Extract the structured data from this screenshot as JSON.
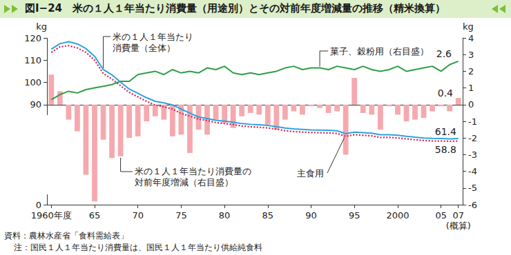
{
  "chart_data": {
    "type": "combo",
    "title": "図Ⅰ−24　米の１人１年当たり消費量（用途別）とその対前年度増減量の推移（精米換算）",
    "categories": [
      "1960年度",
      null,
      null,
      null,
      null,
      "65",
      null,
      null,
      null,
      null,
      "70",
      null,
      null,
      null,
      null,
      "75",
      null,
      null,
      null,
      null,
      "80",
      null,
      null,
      null,
      null,
      "85",
      null,
      null,
      null,
      null,
      "90",
      null,
      null,
      null,
      null,
      "95",
      null,
      null,
      null,
      null,
      "2000",
      null,
      null,
      null,
      null,
      "05",
      null,
      "07\n(概算)"
    ],
    "series": [
      {
        "name": "米の１人１年当たり消費量の対前年度増減（右目盛）",
        "type": "bar",
        "axis": "y2",
        "color": "#f5a9ae",
        "values": [
          1.8,
          0.8,
          -0.9,
          -1.6,
          -4.2,
          -5.8,
          -2.1,
          -3.2,
          -3.1,
          -2.0,
          -1.9,
          -1.0,
          -0.7,
          -0.9,
          -1.9,
          -1.8,
          -2.9,
          -1.5,
          -1.8,
          -0.9,
          -1.1,
          -1.4,
          -0.7,
          -0.5,
          -0.6,
          -1.2,
          -1.5,
          -0.9,
          -0.4,
          -0.6,
          -0.1,
          -0.2,
          -0.5,
          -0.4,
          -3.0,
          1.6,
          -0.5,
          -0.6,
          -1.5,
          -0.1,
          -0.6,
          -1.0,
          -0.9,
          -0.8,
          -0.4,
          -0.1,
          -0.4,
          0.4
        ]
      },
      {
        "name": "菓子、穀粉用（右目盛）",
        "type": "line",
        "axis": "y2",
        "color": "#2e9e45",
        "line_style": "solid",
        "values": [
          0.3,
          0.6,
          0.8,
          0.7,
          0.9,
          1.0,
          1.1,
          1.2,
          1.4,
          1.4,
          1.8,
          1.9,
          2.0,
          1.8,
          2.1,
          1.9,
          2.0,
          1.9,
          2.2,
          2.1,
          2.3,
          1.9,
          1.8,
          1.9,
          1.8,
          1.9,
          2.0,
          2.2,
          2.3,
          2.1,
          2.2,
          2.2,
          2.1,
          2.3,
          2.2,
          2.1,
          2.3,
          2.1,
          2.0,
          2.1,
          2.3,
          2.0,
          2.1,
          2.2,
          2.3,
          2.0,
          2.4,
          2.6
        ]
      },
      {
        "name": "主食用",
        "type": "line",
        "axis": "y",
        "color": "#d42a5e",
        "line_style": "dotted",
        "values": [
          113.5,
          116.0,
          116.5,
          115.5,
          113.5,
          110.0,
          104.0,
          101.5,
          98.5,
          95.5,
          93.5,
          91.5,
          89.8,
          89.0,
          88.0,
          86.0,
          84.0,
          81.0,
          79.5,
          77.5,
          76.5,
          75.5,
          74.0,
          73.2,
          72.7,
          72.0,
          70.8,
          69.2,
          68.3,
          67.9,
          67.3,
          67.2,
          67.0,
          66.5,
          63.5,
          65.2,
          64.6,
          64.0,
          62.5,
          62.5,
          61.9,
          61.0,
          60.1,
          59.3,
          58.9,
          58.8,
          58.5,
          58.8
        ]
      },
      {
        "name": "米の１人１年当たり消費量（全体）",
        "type": "line",
        "axis": "y",
        "color": "#2aa3df",
        "line_style": "solid",
        "values": [
          114.9,
          117.4,
          118.3,
          117.3,
          115.2,
          111.7,
          105.8,
          103.4,
          100.1,
          97.0,
          95.1,
          93.1,
          91.5,
          90.8,
          89.9,
          88.0,
          86.2,
          83.1,
          81.6,
          79.8,
          78.9,
          77.8,
          76.4,
          75.7,
          75.2,
          74.6,
          73.4,
          71.9,
          71.0,
          70.6,
          70.0,
          69.9,
          69.7,
          69.2,
          66.2,
          67.8,
          67.3,
          66.7,
          65.2,
          65.2,
          64.6,
          63.6,
          62.7,
          61.9,
          61.5,
          61.4,
          61.0,
          61.4
        ]
      }
    ],
    "ylabel": "kg",
    "y2label": "kg",
    "ylim": [
      0,
      120
    ],
    "yticks": [
      0,
      90,
      100,
      110,
      120
    ],
    "y2lim": [
      -6,
      4
    ],
    "y2ticks": [
      -6,
      -5,
      -4,
      -3,
      -2,
      -1,
      0,
      1,
      2,
      3,
      4
    ],
    "grid": false,
    "annotations": [
      {
        "text": "61.4",
        "x": "07\n(概算)",
        "y": 61.4,
        "axis": "y"
      },
      {
        "text": "58.8",
        "x": "07\n(概算)",
        "y": 58.8,
        "axis": "y"
      },
      {
        "text": "2.6",
        "x": "07\n(概算)",
        "y": 2.6,
        "axis": "y2"
      },
      {
        "text": "0.4",
        "x": "07\n(概算)",
        "y": 0.4,
        "axis": "y2"
      }
    ],
    "notes": [
      "資料：農林水産省「食料需給表」",
      "注：国民１人１年当たり消費量は、国民１人１年当たり供給純食料"
    ]
  }
}
